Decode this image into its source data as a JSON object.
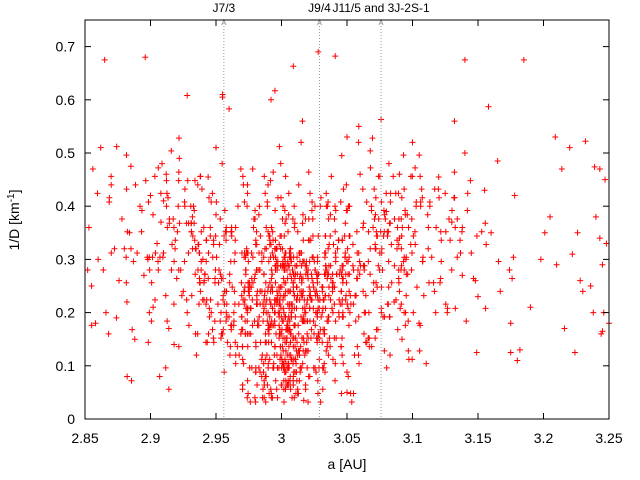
{
  "chart_data": {
    "type": "scatter",
    "xlabel": "a [AU]",
    "ylabel_main": "1/D [km",
    "ylabel_sup": "-1",
    "ylabel_tail": "]",
    "xlim": [
      2.85,
      3.25
    ],
    "ylim": [
      0,
      0.75
    ],
    "xticks": [
      2.85,
      2.9,
      2.95,
      3.0,
      3.05,
      3.1,
      3.15,
      3.2,
      3.25
    ],
    "xtick_labels": [
      "2.85",
      "2.9",
      "2.95",
      "3",
      "3.05",
      "3.1",
      "3.15",
      "3.2",
      "3.25"
    ],
    "yticks": [
      0,
      0.1,
      0.2,
      0.3,
      0.4,
      0.5,
      0.6,
      0.7
    ],
    "ytick_labels": [
      "0",
      "0.1",
      "0.2",
      "0.3",
      "0.4",
      "0.5",
      "0.6",
      "0.7"
    ],
    "grid": false,
    "marker_color": "#ff0000",
    "resonances": [
      {
        "x": 2.956,
        "label": "J7/3"
      },
      {
        "x": 3.029,
        "label": "J9/4"
      },
      {
        "x": 3.076,
        "label": "J11/5 and 3J-2S-1"
      }
    ],
    "series": [
      {
        "x": [
          2.865,
          2.896,
          2.96,
          2.955,
          2.995,
          3.041,
          3.028,
          3.059,
          3.14,
          3.185,
          3.158,
          3.009,
          3.016,
          3.076,
          3.239,
          2.928,
          2.955,
          2.992,
          2.862,
          2.885,
          2.922,
          2.95,
          2.969,
          3.015,
          3.05,
          3.082,
          3.1,
          3.14,
          3.165,
          3.209,
          3.22,
          3.232,
          2.856,
          2.87,
          2.9,
          2.912,
          2.944,
          2.978,
          3.046,
          3.06,
          3.09,
          3.12,
          3.155,
          3.214,
          3.247,
          3.243,
          2.853,
          2.892,
          2.91,
          2.932,
          2.965,
          3.08,
          3.13,
          3.178,
          3.205,
          3.226,
          3.24,
          2.86,
          2.88,
          2.905,
          2.94,
          3.09,
          3.112,
          3.16,
          3.198,
          3.222,
          3.248,
          2.855,
          2.876,
          2.895,
          2.925,
          2.941,
          3.095,
          3.138,
          3.167,
          3.21,
          3.236,
          2.866,
          2.882,
          2.902,
          2.928,
          3.086,
          3.15,
          3.19,
          3.23,
          3.246,
          2.858,
          2.874,
          2.914,
          2.936,
          3.105,
          3.175,
          3.216,
          3.238,
          2.868,
          2.888,
          2.918,
          3.092,
          3.182,
          3.244,
          3.175,
          3.18,
          3.149,
          3.25,
          3.245,
          2.864,
          2.898,
          2.916,
          3.148,
          3.174,
          3.228,
          3.245,
          2.884,
          2.908,
          3.201,
          3.243,
          2.907,
          3.011,
          3.05,
          3.017,
          3.224
        ],
        "y": [
          0.675,
          0.68,
          0.583,
          0.605,
          0.617,
          0.682,
          0.69,
          0.55,
          0.675,
          0.675,
          0.587,
          0.663,
          0.56,
          0.563,
          0.474,
          0.608,
          0.61,
          0.6,
          0.51,
          0.475,
          0.49,
          0.51,
          0.47,
          0.52,
          0.53,
          0.48,
          0.52,
          0.5,
          0.485,
          0.53,
          0.51,
          0.522,
          0.47,
          0.44,
          0.42,
          0.46,
          0.455,
          0.47,
          0.495,
          0.46,
          0.46,
          0.455,
          0.43,
          0.47,
          0.45,
          0.47,
          0.36,
          0.4,
          0.41,
          0.38,
          0.36,
          0.39,
          0.37,
          0.42,
          0.38,
          0.35,
          0.38,
          0.3,
          0.32,
          0.33,
          0.3,
          0.34,
          0.32,
          0.35,
          0.3,
          0.31,
          0.33,
          0.25,
          0.26,
          0.27,
          0.24,
          0.26,
          0.3,
          0.27,
          0.24,
          0.29,
          0.25,
          0.2,
          0.22,
          0.21,
          0.2,
          0.22,
          0.23,
          0.21,
          0.24,
          0.2,
          0.18,
          0.19,
          0.17,
          0.16,
          0.18,
          0.18,
          0.17,
          0.2,
          0.16,
          0.15,
          0.14,
          0.15,
          0.13,
          0.16,
          0.125,
          0.11,
          0.125,
          0.18,
          0.165,
          0.28,
          0.3,
          0.28,
          0.26,
          0.28,
          0.26,
          0.29,
          0.35,
          0.37,
          0.35,
          0.34,
          0.08,
          0.048,
          0.05,
          0.035,
          0.125
        ]
      }
    ],
    "dense_clusters": [
      {
        "x_center": 3.005,
        "x_sigma": 0.028,
        "y_center": 0.215,
        "y_sigma": 0.085,
        "n": 620
      },
      {
        "x_center": 3.0,
        "x_sigma": 0.012,
        "y_center": 0.095,
        "y_sigma": 0.035,
        "n": 90
      },
      {
        "x_center": 3.03,
        "x_sigma": 0.045,
        "y_center": 0.3,
        "y_sigma": 0.095,
        "n": 260
      },
      {
        "x_center": 2.93,
        "x_sigma": 0.035,
        "y_center": 0.32,
        "y_sigma": 0.085,
        "n": 160
      },
      {
        "x_center": 3.1,
        "x_sigma": 0.028,
        "y_center": 0.33,
        "y_sigma": 0.09,
        "n": 120
      }
    ]
  }
}
